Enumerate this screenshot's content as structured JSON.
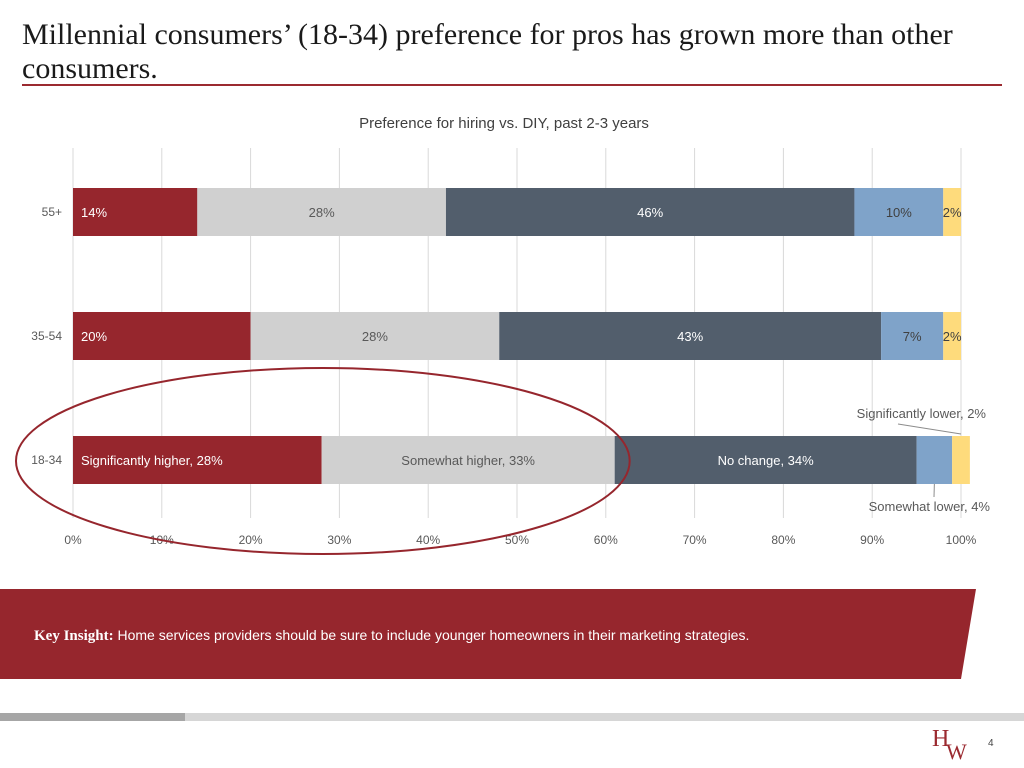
{
  "slide": {
    "title": "Millennial consumers’ (18-34) preference for pros has grown more than other consumers.",
    "page_number": "4",
    "logo_letters": [
      "H",
      "W"
    ]
  },
  "insight": {
    "label": "Key Insight:",
    "text": "Home services providers should be sure to include younger homeowners in their marketing strategies."
  },
  "chart_data": {
    "type": "bar",
    "orientation": "horizontal",
    "stacked": true,
    "title": "Preference for hiring vs. DIY, past 2-3 years",
    "categories": [
      "55+",
      "35-54",
      "18-34"
    ],
    "xlim": [
      0,
      100
    ],
    "x_ticks": [
      "0%",
      "10%",
      "20%",
      "30%",
      "40%",
      "50%",
      "60%",
      "70%",
      "80%",
      "90%",
      "100%"
    ],
    "grid": true,
    "series": [
      {
        "name": "Significantly higher",
        "color": "#96262d",
        "values": [
          14,
          20,
          28
        ],
        "labels": [
          "14%",
          "20%",
          "Significantly higher, 28%"
        ],
        "label_color": "#ffffff",
        "label_align": "start"
      },
      {
        "name": "Somewhat higher",
        "color": "#d0d0d0",
        "values": [
          28,
          28,
          33
        ],
        "labels": [
          "28%",
          "28%",
          "Somewhat higher, 33%"
        ],
        "label_color": "#595959",
        "label_align": "center"
      },
      {
        "name": "No change",
        "color": "#525e6c",
        "values": [
          46,
          43,
          34
        ],
        "labels": [
          "46%",
          "43%",
          "No change, 34%"
        ],
        "label_color": "#ffffff",
        "label_align": "center"
      },
      {
        "name": "Somewhat lower",
        "color": "#7fa3c9",
        "values": [
          10,
          7,
          4
        ],
        "labels": [
          "10%",
          "7%",
          ""
        ],
        "label_color": "#404040",
        "label_align": "center"
      },
      {
        "name": "Significantly lower",
        "color": "#fedb7c",
        "values": [
          2,
          2,
          2
        ],
        "labels": [
          "2%",
          "2%",
          ""
        ],
        "label_color": "#404040",
        "label_align": "center"
      }
    ],
    "annotations": [
      {
        "text": "Significantly lower, 2%",
        "category": "18-34",
        "series": "Significantly lower",
        "placement": "above"
      },
      {
        "text": "Somewhat lower, 4%",
        "category": "18-34",
        "series": "Somewhat lower",
        "placement": "below"
      }
    ],
    "highlight": {
      "shape": "ellipse",
      "color": "#96262d",
      "category": "18-34",
      "covers_series": [
        "Significantly higher",
        "Somewhat higher"
      ]
    }
  }
}
